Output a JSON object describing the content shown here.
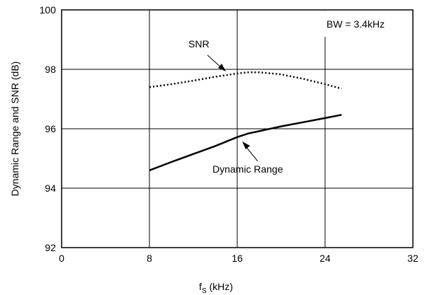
{
  "chart_data": {
    "type": "line",
    "xlabel": "f",
    "xlabel_sub": "S",
    "xlabel_unit": " (kHz)",
    "ylabel": "Dynamic Range and SNR (dB)",
    "xlim": [
      0,
      32
    ],
    "ylim": [
      92,
      100
    ],
    "x_ticks": [
      0,
      8,
      16,
      24,
      32
    ],
    "y_ticks": [
      92,
      94,
      96,
      98,
      100
    ],
    "grid": true,
    "annotation": "BW = 3.4kHz",
    "series": [
      {
        "name": "SNR",
        "style": "dotted",
        "x": [
          8,
          10,
          12,
          14,
          16,
          17,
          18,
          20,
          22,
          24,
          25.5
        ],
        "y": [
          97.4,
          97.5,
          97.62,
          97.75,
          97.86,
          97.9,
          97.9,
          97.83,
          97.68,
          97.5,
          97.35
        ]
      },
      {
        "name": "Dynamic Range",
        "style": "solid",
        "x": [
          8,
          10,
          12,
          14,
          16,
          17,
          18,
          20,
          22,
          24,
          25.5
        ],
        "y": [
          94.6,
          94.88,
          95.15,
          95.42,
          95.72,
          95.84,
          95.92,
          96.08,
          96.22,
          96.36,
          96.47
        ]
      }
    ]
  }
}
